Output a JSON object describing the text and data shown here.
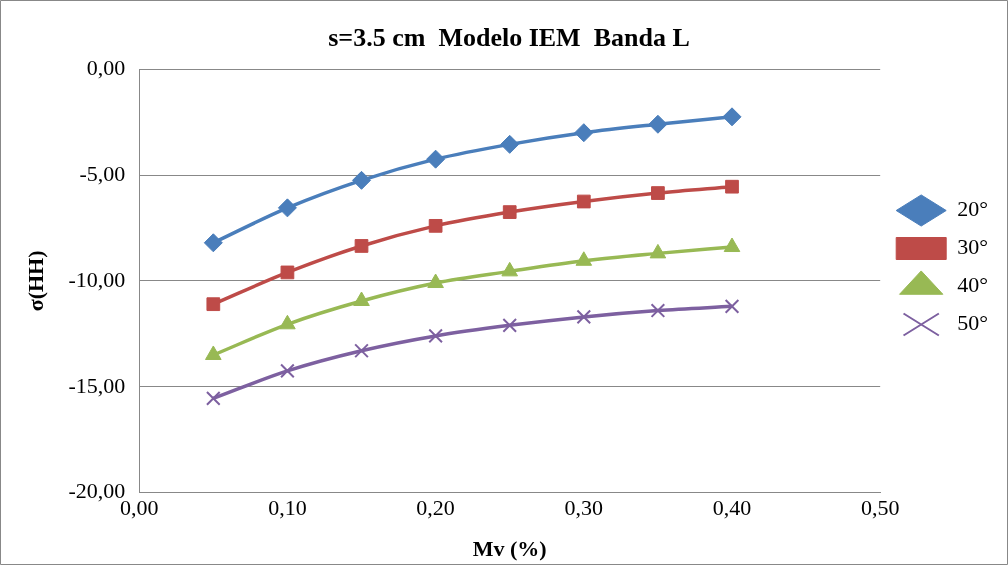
{
  "chart_data": {
    "type": "line",
    "title": "s=3.5 cm  Modelo IEM  Banda L",
    "xlabel": "Mv (%)",
    "ylabel": "σ(HH)",
    "x": [
      0.05,
      0.1,
      0.15,
      0.2,
      0.25,
      0.3,
      0.35,
      0.4
    ],
    "xlim": [
      0,
      0.5
    ],
    "xticks": [
      {
        "value": 0,
        "label": "0,00"
      },
      {
        "value": 0.1,
        "label": "0,10"
      },
      {
        "value": 0.2,
        "label": "0,20"
      },
      {
        "value": 0.3,
        "label": "0,30"
      },
      {
        "value": 0.4,
        "label": "0,40"
      },
      {
        "value": 0.5,
        "label": "0,50"
      }
    ],
    "ylim": [
      -20,
      0
    ],
    "yticks": [
      {
        "value": -20,
        "label": "-20,00"
      },
      {
        "value": -15,
        "label": "-15,00"
      },
      {
        "value": -10,
        "label": "-10,00"
      },
      {
        "value": -5,
        "label": "-5,00"
      },
      {
        "value": 0,
        "label": "0,00"
      }
    ],
    "grid": "y",
    "legend": "right",
    "line_style": "solid",
    "series": [
      {
        "name": "20°",
        "color": "#4a7ebb",
        "marker": "diamond",
        "values": [
          -8.2,
          -6.55,
          -5.25,
          -4.25,
          -3.55,
          -3.0,
          -2.6,
          -2.25
        ]
      },
      {
        "name": "30°",
        "color": "#be4b48",
        "marker": "square",
        "values": [
          -11.1,
          -9.6,
          -8.35,
          -7.4,
          -6.75,
          -6.25,
          -5.85,
          -5.55
        ]
      },
      {
        "name": "40°",
        "color": "#98b954",
        "marker": "triangle",
        "values": [
          -13.5,
          -12.05,
          -10.95,
          -10.1,
          -9.55,
          -9.05,
          -8.7,
          -8.4
        ]
      },
      {
        "name": "50°",
        "color": "#7d60a0",
        "marker": "cross",
        "values": [
          -15.55,
          -14.25,
          -13.3,
          -12.6,
          -12.1,
          -11.7,
          -11.4,
          -11.2
        ]
      }
    ]
  }
}
